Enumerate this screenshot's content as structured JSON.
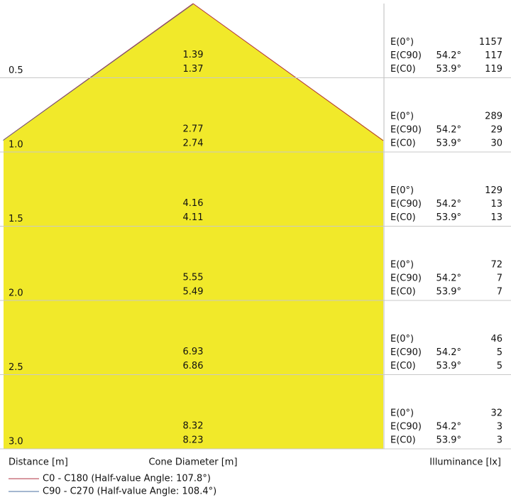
{
  "rows": [
    {
      "distance": "0.5",
      "diameter_top": "1.39",
      "diameter_bottom": "1.37",
      "e0_label": "E(0°)",
      "e0": "1157",
      "c90_label": "E(C90)",
      "c90_angle": "54.2°",
      "c90": "117",
      "c0_label": "E(C0)",
      "c0_angle": "53.9°",
      "c0": "119"
    },
    {
      "distance": "1.0",
      "diameter_top": "2.77",
      "diameter_bottom": "2.74",
      "e0_label": "E(0°)",
      "e0": "289",
      "c90_label": "E(C90)",
      "c90_angle": "54.2°",
      "c90": "29",
      "c0_label": "E(C0)",
      "c0_angle": "53.9°",
      "c0": "30"
    },
    {
      "distance": "1.5",
      "diameter_top": "4.16",
      "diameter_bottom": "4.11",
      "e0_label": "E(0°)",
      "e0": "129",
      "c90_label": "E(C90)",
      "c90_angle": "54.2°",
      "c90": "13",
      "c0_label": "E(C0)",
      "c0_angle": "53.9°",
      "c0": "13"
    },
    {
      "distance": "2.0",
      "diameter_top": "5.55",
      "diameter_bottom": "5.49",
      "e0_label": "E(0°)",
      "e0": "72",
      "c90_label": "E(C90)",
      "c90_angle": "54.2°",
      "c90": "7",
      "c0_label": "E(C0)",
      "c0_angle": "53.9°",
      "c0": "7"
    },
    {
      "distance": "2.5",
      "diameter_top": "6.93",
      "diameter_bottom": "6.86",
      "e0_label": "E(0°)",
      "e0": "46",
      "c90_label": "E(C90)",
      "c90_angle": "54.2°",
      "c90": "5",
      "c0_label": "E(C0)",
      "c0_angle": "53.9°",
      "c0": "5"
    },
    {
      "distance": "3.0",
      "diameter_top": "8.32",
      "diameter_bottom": "8.23",
      "e0_label": "E(0°)",
      "e0": "32",
      "c90_label": "E(C90)",
      "c90_angle": "54.2°",
      "c90": "3",
      "c0_label": "E(C0)",
      "c0_angle": "53.9°",
      "c0": "3"
    }
  ],
  "footer": {
    "distance": "Distance [m]",
    "diameter": "Cone Diameter [m]",
    "illuminance": "Illuminance [lx]"
  },
  "legend": [
    "C0 - C180 (Half-value Angle: 107.8°)",
    "C90 - C270 (Half-value Angle: 108.4°)"
  ]
}
